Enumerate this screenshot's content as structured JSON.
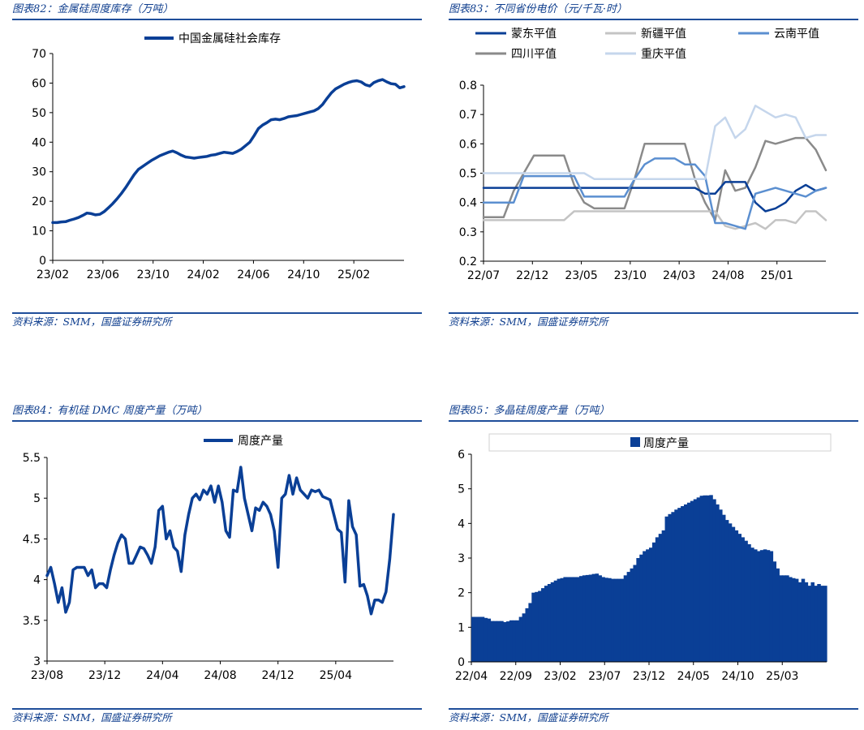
{
  "charts": [
    {
      "title": "图表82：金属硅周度库存（万吨）",
      "source": "资料来源：SMM，国盛证券研究所"
    },
    {
      "title": "图表83：不同省份电价（元/千瓦·时）",
      "source": "资料来源：SMM，国盛证券研究所"
    },
    {
      "title": "图表84：有机硅 DMC 周度产量（万吨）",
      "source": "资料来源：SMM，国盛证券研究所"
    },
    {
      "title": "图表85：多晶硅周度产量（万吨）",
      "source": "资料来源：SMM，国盛证券研究所"
    }
  ],
  "colors": {
    "navy": "#0a3f96",
    "medium_blue": "#5b8fd0",
    "gray": "#8a8a8a",
    "light_gray": "#c4c4c4",
    "light_blue": "#c5d6ec"
  },
  "chart_data": [
    {
      "type": "line",
      "ylim": [
        0,
        70
      ],
      "yticks": [
        0,
        10,
        20,
        30,
        40,
        50,
        60,
        70
      ],
      "xticks": [
        "23/02",
        "23/06",
        "23/10",
        "24/02",
        "24/06",
        "24/10",
        "25/02"
      ],
      "series": [
        {
          "name": "中国金属硅社会库存",
          "values": [
            12.8,
            12.8,
            13.0,
            13.1,
            13.6,
            14.0,
            14.5,
            15.2,
            16.0,
            15.8,
            15.4,
            15.6,
            16.5,
            17.8,
            19.2,
            20.8,
            22.6,
            24.6,
            26.8,
            29.0,
            30.8,
            31.8,
            32.8,
            33.8,
            34.6,
            35.4,
            36.0,
            36.6,
            37.0,
            36.4,
            35.6,
            35.0,
            34.8,
            34.6,
            34.8,
            35.0,
            35.2,
            35.6,
            35.8,
            36.2,
            36.6,
            36.4,
            36.2,
            36.8,
            37.6,
            38.8,
            40.0,
            42.2,
            44.6,
            45.8,
            46.6,
            47.6,
            47.8,
            47.6,
            48.0,
            48.6,
            48.8,
            49.0,
            49.4,
            49.8,
            50.2,
            50.6,
            51.4,
            52.8,
            54.8,
            56.6,
            58.0,
            58.8,
            59.6,
            60.2,
            60.6,
            60.8,
            60.4,
            59.4,
            59.0,
            60.2,
            60.8,
            61.2,
            60.4,
            59.8,
            59.6,
            58.4,
            58.8
          ]
        }
      ]
    },
    {
      "type": "line",
      "ylim": [
        0.2,
        0.8
      ],
      "yticks": [
        0.2,
        0.3,
        0.4,
        0.5,
        0.6,
        0.7,
        0.8
      ],
      "xticks": [
        "22/07",
        "22/12",
        "23/05",
        "23/10",
        "24/03",
        "24/08",
        "25/01"
      ],
      "x": [
        "22/07",
        "22/08",
        "22/09",
        "22/10",
        "22/11",
        "22/12",
        "23/01",
        "23/02",
        "23/03",
        "23/04",
        "23/05",
        "23/06",
        "23/07",
        "23/08",
        "23/09",
        "23/10",
        "23/11",
        "23/12",
        "24/01",
        "24/02",
        "24/03",
        "24/04",
        "24/05",
        "24/06",
        "24/07",
        "24/08",
        "24/09",
        "24/10",
        "24/11",
        "24/12",
        "25/01",
        "25/02",
        "25/03",
        "25/04",
        "25/05"
      ],
      "legend": "top",
      "series": [
        {
          "name": "蒙东平值",
          "color": "#0a3f96",
          "values": [
            0.45,
            0.45,
            0.45,
            0.45,
            0.45,
            0.45,
            0.45,
            0.45,
            0.45,
            0.45,
            0.45,
            0.45,
            0.45,
            0.45,
            0.45,
            0.45,
            0.45,
            0.45,
            0.45,
            0.45,
            0.45,
            0.45,
            0.43,
            0.43,
            0.47,
            0.47,
            0.47,
            0.4,
            0.37,
            0.38,
            0.4,
            0.44,
            0.46,
            0.44,
            0.45
          ]
        },
        {
          "name": "新疆平值",
          "color": "#c4c4c4",
          "values": [
            0.34,
            0.34,
            0.34,
            0.34,
            0.34,
            0.34,
            0.34,
            0.34,
            0.34,
            0.37,
            0.37,
            0.37,
            0.37,
            0.37,
            0.37,
            0.37,
            0.37,
            0.37,
            0.37,
            0.37,
            0.37,
            0.37,
            0.37,
            0.37,
            0.32,
            0.31,
            0.32,
            0.33,
            0.31,
            0.34,
            0.34,
            0.33,
            0.37,
            0.37,
            0.34
          ]
        },
        {
          "name": "云南平值",
          "color": "#5b8fd0",
          "values": [
            0.4,
            0.4,
            0.4,
            0.4,
            0.49,
            0.49,
            0.49,
            0.49,
            0.49,
            0.49,
            0.42,
            0.42,
            0.42,
            0.42,
            0.42,
            0.48,
            0.53,
            0.55,
            0.55,
            0.55,
            0.53,
            0.53,
            0.49,
            0.33,
            0.33,
            0.32,
            0.31,
            0.43,
            0.44,
            0.45,
            0.44,
            0.43,
            0.42,
            0.44,
            0.45
          ]
        },
        {
          "name": "四川平值",
          "color": "#8a8a8a",
          "values": [
            0.35,
            0.35,
            0.35,
            0.44,
            0.5,
            0.56,
            0.56,
            0.56,
            0.56,
            0.46,
            0.4,
            0.38,
            0.38,
            0.38,
            0.38,
            0.48,
            0.6,
            0.6,
            0.6,
            0.6,
            0.6,
            0.48,
            0.4,
            0.34,
            0.51,
            0.44,
            0.45,
            0.52,
            0.61,
            0.6,
            0.61,
            0.62,
            0.62,
            0.58,
            0.51
          ]
        },
        {
          "name": "重庆平值",
          "color": "#c5d6ec",
          "values": [
            0.5,
            0.5,
            0.5,
            0.5,
            0.5,
            0.5,
            0.5,
            0.5,
            0.5,
            0.5,
            0.5,
            0.48,
            0.48,
            0.48,
            0.48,
            0.48,
            0.48,
            0.48,
            0.48,
            0.48,
            0.48,
            0.48,
            0.48,
            0.66,
            0.69,
            0.62,
            0.65,
            0.73,
            0.71,
            0.69,
            0.7,
            0.69,
            0.62,
            0.63,
            0.63
          ]
        }
      ]
    },
    {
      "type": "line",
      "ylim": [
        3,
        5.5
      ],
      "yticks": [
        3,
        3.5,
        4,
        4.5,
        5,
        5.5
      ],
      "xticks": [
        "23/08",
        "23/12",
        "24/04",
        "24/08",
        "24/12",
        "25/04"
      ],
      "series": [
        {
          "name": "周度产量",
          "values": [
            4.05,
            4.15,
            3.95,
            3.72,
            3.9,
            3.6,
            3.72,
            4.12,
            4.15,
            4.15,
            4.15,
            4.05,
            4.12,
            3.9,
            3.95,
            3.95,
            3.9,
            4.12,
            4.3,
            4.45,
            4.55,
            4.5,
            4.2,
            4.2,
            4.3,
            4.4,
            4.38,
            4.3,
            4.2,
            4.4,
            4.85,
            4.9,
            4.5,
            4.6,
            4.4,
            4.35,
            4.1,
            4.55,
            4.8,
            5.0,
            5.05,
            4.98,
            5.1,
            5.05,
            5.15,
            4.95,
            5.15,
            4.95,
            4.6,
            4.52,
            5.1,
            5.08,
            5.38,
            5.0,
            4.8,
            4.6,
            4.88,
            4.85,
            4.95,
            4.9,
            4.8,
            4.6,
            4.15,
            5.0,
            5.05,
            5.28,
            5.05,
            5.25,
            5.1,
            5.05,
            5.0,
            5.1,
            5.08,
            5.1,
            5.02,
            5.0,
            4.98,
            4.8,
            4.62,
            4.58,
            3.97,
            4.97,
            4.65,
            4.55,
            3.92,
            3.94,
            3.8,
            3.58,
            3.75,
            3.75,
            3.72,
            3.85,
            4.25,
            4.8
          ]
        }
      ]
    },
    {
      "type": "bar",
      "ylim": [
        0,
        6
      ],
      "yticks": [
        0,
        1,
        2,
        3,
        4,
        5,
        6
      ],
      "xticks": [
        "22/04",
        "22/09",
        "23/02",
        "23/07",
        "23/12",
        "24/05",
        "24/10",
        "25/03"
      ],
      "series": [
        {
          "name": "周度产量",
          "anchors": [
            [
              0,
              1.3
            ],
            [
              3,
              1.3
            ],
            [
              5,
              1.25
            ],
            [
              6,
              1.18
            ],
            [
              9,
              1.18
            ],
            [
              10,
              1.15
            ],
            [
              12,
              1.2
            ],
            [
              14,
              1.2
            ],
            [
              16,
              1.4
            ],
            [
              18,
              1.7
            ],
            [
              19,
              2.0
            ],
            [
              21,
              2.05
            ],
            [
              23,
              2.2
            ],
            [
              25,
              2.3
            ],
            [
              27,
              2.4
            ],
            [
              29,
              2.45
            ],
            [
              33,
              2.45
            ],
            [
              35,
              2.5
            ],
            [
              39,
              2.55
            ],
            [
              41,
              2.45
            ],
            [
              44,
              2.4
            ],
            [
              47,
              2.4
            ],
            [
              49,
              2.6
            ],
            [
              51,
              2.8
            ],
            [
              52,
              3.0
            ],
            [
              54,
              3.2
            ],
            [
              56,
              3.3
            ],
            [
              58,
              3.6
            ],
            [
              60,
              3.8
            ],
            [
              61,
              4.2
            ],
            [
              64,
              4.4
            ],
            [
              66,
              4.5
            ],
            [
              68,
              4.6
            ],
            [
              70,
              4.7
            ],
            [
              72,
              4.8
            ],
            [
              75,
              4.82
            ],
            [
              76,
              4.7
            ],
            [
              78,
              4.4
            ],
            [
              80,
              4.1
            ],
            [
              82,
              3.9
            ],
            [
              84,
              3.7
            ],
            [
              86,
              3.5
            ],
            [
              88,
              3.3
            ],
            [
              90,
              3.2
            ],
            [
              92,
              3.25
            ],
            [
              94,
              3.2
            ],
            [
              95,
              2.9
            ],
            [
              96,
              2.7
            ],
            [
              97,
              2.5
            ],
            [
              99,
              2.5
            ],
            [
              100,
              2.45
            ],
            [
              102,
              2.4
            ],
            [
              103,
              2.3
            ],
            [
              104,
              2.4
            ],
            [
              105,
              2.3
            ],
            [
              106,
              2.2
            ],
            [
              107,
              2.3
            ],
            [
              108,
              2.2
            ],
            [
              109,
              2.25
            ],
            [
              110,
              2.2
            ],
            [
              111,
              2.2
            ]
          ],
          "count": 112
        }
      ]
    }
  ]
}
